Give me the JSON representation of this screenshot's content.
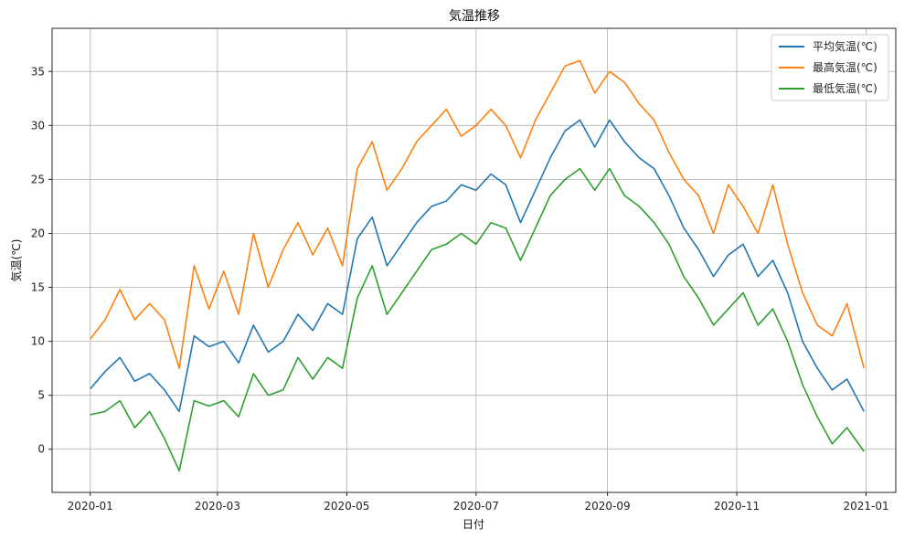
{
  "chart_data": {
    "type": "line",
    "title": "気温推移",
    "xlabel": "日付",
    "ylabel": "気温(℃)",
    "xlim": [
      "2019-12-14",
      "2021-01-15"
    ],
    "ylim": [
      -4,
      39
    ],
    "x_ticks": [
      "2020-01-01",
      "2020-03-01",
      "2020-05-01",
      "2020-07-01",
      "2020-09-01",
      "2020-11-01",
      "2021-01-01"
    ],
    "x_tick_labels": [
      "2020-01",
      "2020-03",
      "2020-05",
      "2020-07",
      "2020-09",
      "2020-11",
      "2021-01"
    ],
    "y_ticks": [
      0,
      5,
      10,
      15,
      20,
      25,
      30,
      35
    ],
    "grid": true,
    "legend_position": "top-right",
    "x": [
      "2020-01-01",
      "2020-01-08",
      "2020-01-15",
      "2020-01-22",
      "2020-01-29",
      "2020-02-05",
      "2020-02-12",
      "2020-02-19",
      "2020-02-26",
      "2020-03-04",
      "2020-03-11",
      "2020-03-18",
      "2020-03-25",
      "2020-04-01",
      "2020-04-08",
      "2020-04-15",
      "2020-04-22",
      "2020-04-29",
      "2020-05-06",
      "2020-05-13",
      "2020-05-20",
      "2020-05-27",
      "2020-06-03",
      "2020-06-10",
      "2020-06-17",
      "2020-06-24",
      "2020-07-01",
      "2020-07-08",
      "2020-07-15",
      "2020-07-22",
      "2020-07-29",
      "2020-08-05",
      "2020-08-12",
      "2020-08-19",
      "2020-08-26",
      "2020-09-02",
      "2020-09-09",
      "2020-09-16",
      "2020-09-23",
      "2020-09-30",
      "2020-10-07",
      "2020-10-14",
      "2020-10-21",
      "2020-10-28",
      "2020-11-04",
      "2020-11-11",
      "2020-11-18",
      "2020-11-25",
      "2020-12-02",
      "2020-12-09",
      "2020-12-16",
      "2020-12-23",
      "2020-12-31"
    ],
    "series": [
      {
        "name": "平均気温(℃)",
        "color": "#1f77b4",
        "values": [
          5.6,
          7.2,
          8.5,
          6.3,
          7.0,
          5.5,
          3.5,
          10.5,
          9.5,
          10.0,
          8.0,
          11.5,
          9.0,
          10.0,
          12.5,
          11.0,
          13.5,
          12.5,
          19.5,
          21.5,
          17.0,
          19.0,
          21.0,
          22.5,
          23.0,
          24.5,
          24.0,
          25.5,
          24.5,
          21.0,
          24.0,
          27.0,
          29.5,
          30.5,
          28.0,
          30.5,
          28.5,
          27.0,
          26.0,
          23.5,
          20.5,
          18.5,
          16.0,
          18.0,
          19.0,
          16.0,
          17.5,
          14.5,
          10.0,
          7.5,
          5.5,
          6.5,
          3.5
        ]
      },
      {
        "name": "最高気温(℃)",
        "color": "#ff7f0e",
        "values": [
          10.2,
          12.0,
          14.8,
          12.0,
          13.5,
          12.0,
          7.5,
          17.0,
          13.0,
          16.5,
          12.5,
          20.0,
          15.0,
          18.5,
          21.0,
          18.0,
          20.5,
          17.0,
          26.0,
          28.5,
          24.0,
          26.0,
          28.5,
          30.0,
          31.5,
          29.0,
          30.0,
          31.5,
          30.0,
          27.0,
          30.5,
          33.0,
          35.5,
          36.0,
          33.0,
          35.0,
          34.0,
          32.0,
          30.5,
          27.5,
          25.0,
          23.5,
          20.0,
          24.5,
          22.5,
          20.0,
          24.5,
          19.0,
          14.5,
          11.5,
          10.5,
          13.5,
          7.5
        ]
      },
      {
        "name": "最低気温(℃)",
        "color": "#2ca02c",
        "values": [
          3.2,
          3.5,
          4.5,
          2.0,
          3.5,
          1.0,
          -2.0,
          4.5,
          4.0,
          4.5,
          3.0,
          7.0,
          5.0,
          5.5,
          8.5,
          6.5,
          8.5,
          7.5,
          14.0,
          17.0,
          12.5,
          14.5,
          16.5,
          18.5,
          19.0,
          20.0,
          19.0,
          21.0,
          20.5,
          17.5,
          20.5,
          23.5,
          25.0,
          26.0,
          24.0,
          26.0,
          23.5,
          22.5,
          21.0,
          19.0,
          16.0,
          14.0,
          11.5,
          13.0,
          14.5,
          11.5,
          13.0,
          10.0,
          6.0,
          3.0,
          0.5,
          2.0,
          -0.2
        ]
      }
    ]
  }
}
